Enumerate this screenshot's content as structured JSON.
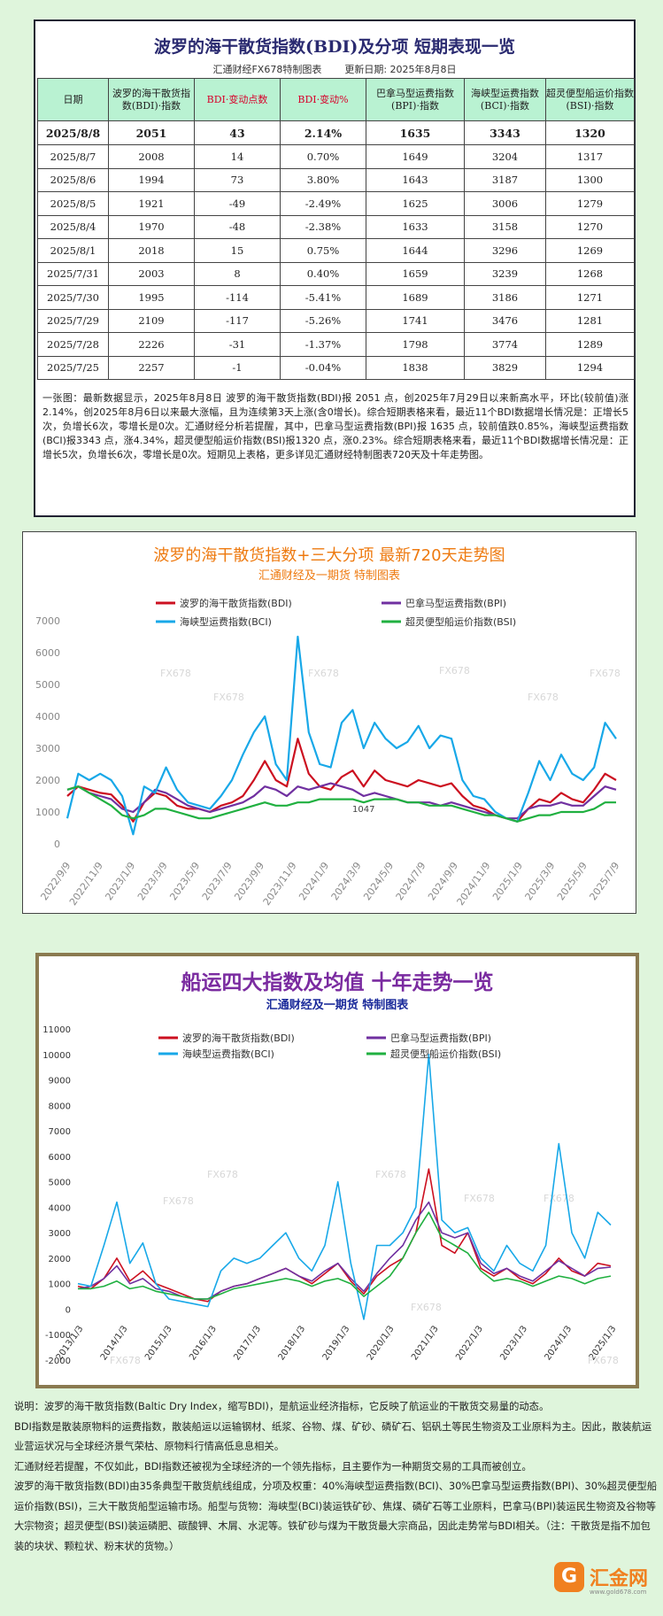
{
  "table": {
    "title": "波罗的海干散货指数(BDI)及分项  短期表现一览",
    "maker": "汇通财经FX678特制图表",
    "updated": "更新日期: 2025年8月8日",
    "headers": [
      "日期",
      "波罗的海干散货指数(BDI)·指数",
      "BDI·变动点数",
      "BDI·变动%",
      "巴拿马型运费指数(BPI)·指数",
      "海峡型运费指数(BCI)·指数",
      "超灵便型船运价指数(BSI)·指数"
    ],
    "rows": [
      [
        "2025/8/8",
        "2051",
        "43",
        "2.14%",
        "1635",
        "3343",
        "1320"
      ],
      [
        "2025/8/7",
        "2008",
        "14",
        "0.70%",
        "1649",
        "3204",
        "1317"
      ],
      [
        "2025/8/6",
        "1994",
        "73",
        "3.80%",
        "1643",
        "3187",
        "1300"
      ],
      [
        "2025/8/5",
        "1921",
        "-49",
        "-2.49%",
        "1625",
        "3006",
        "1279"
      ],
      [
        "2025/8/4",
        "1970",
        "-48",
        "-2.38%",
        "1633",
        "3158",
        "1270"
      ],
      [
        "2025/8/1",
        "2018",
        "15",
        "0.75%",
        "1644",
        "3296",
        "1269"
      ],
      [
        "2025/7/31",
        "2003",
        "8",
        "0.40%",
        "1659",
        "3239",
        "1268"
      ],
      [
        "2025/7/30",
        "1995",
        "-114",
        "-5.41%",
        "1689",
        "3186",
        "1271"
      ],
      [
        "2025/7/29",
        "2109",
        "-117",
        "-5.26%",
        "1741",
        "3476",
        "1281"
      ],
      [
        "2025/7/28",
        "2226",
        "-31",
        "-1.37%",
        "1798",
        "3774",
        "1289"
      ],
      [
        "2025/7/25",
        "2257",
        "-1",
        "-0.04%",
        "1838",
        "3829",
        "1294"
      ]
    ],
    "note": "一张图：最新数据显示，2025年8月8日 波罗的海干散货指数(BDI)报 2051 点，创2025年7月29日以来新高水平，环比(较前值)涨2.14%，创2025年8月6日以来最大涨幅，且为连续第3天上涨(含0增长)。综合短期表格来看，最近11个BDI数据增长情况是：正增长5次，负增长6次，零增长是0次。汇通财经分析若提醒，其中，巴拿马型运费指数(BPI)报 1635 点，较前值跌0.85%，海峡型运费指数(BCI)报3343 点，涨4.34%，超灵便型船运价指数(BSI)报1320 点，涨0.23%。综合短期表格来看，最近11个BDI数据增长情况是：正增长5次，负增长6次，零增长是0次。短期见上表格，更多详见汇通财经特制图表720天及十年走势图。"
  },
  "chart1": {
    "title": "波罗的海干散货指数+三大分项  最新720天走势图",
    "subtitle": "汇通财经及一期货 特制图表",
    "watermark": "FX678",
    "annotation": "1047",
    "colors": {
      "BDI": "#cc1020",
      "BPI": "#7030a0",
      "BCI": "#18a8e8",
      "BSI": "#20b040"
    }
  },
  "chart2": {
    "title": "船运四大指数及均值 十年走势一览",
    "subtitle": "汇通财经及一期货 特制图表",
    "watermark": "FX678"
  },
  "chart_data": [
    {
      "type": "line",
      "ylim": [
        0,
        7000
      ],
      "yticks": [
        0,
        1000,
        2000,
        3000,
        4000,
        5000,
        6000,
        7000
      ],
      "xticks": [
        "2022/9/9",
        "2022/11/9",
        "2023/1/9",
        "2023/3/9",
        "2023/5/9",
        "2023/7/9",
        "2023/9/9",
        "2023/11/9",
        "2024/1/9",
        "2024/3/9",
        "2024/5/9",
        "2024/7/9",
        "2024/9/9",
        "2024/11/9",
        "2025/1/9",
        "2025/3/9",
        "2025/5/9",
        "2025/7/9"
      ],
      "series": [
        {
          "name": "波罗的海干散货指数(BDI)",
          "key": "BDI",
          "values": [
            1500,
            1800,
            1700,
            1600,
            1550,
            1200,
            700,
            1300,
            1600,
            1500,
            1200,
            1100,
            1100,
            1000,
            1200,
            1300,
            1500,
            2000,
            2600,
            2000,
            1800,
            3300,
            2200,
            1800,
            1700,
            2100,
            2300,
            1800,
            2300,
            2000,
            1900,
            1800,
            2000,
            1900,
            1800,
            1900,
            1500,
            1200,
            1100,
            900,
            800,
            700,
            1100,
            1400,
            1300,
            1600,
            1400,
            1300,
            1700,
            2200,
            2000
          ]
        },
        {
          "name": "巴拿马型运费指数(BPI)",
          "key": "BPI",
          "values": [
            1700,
            1800,
            1600,
            1500,
            1400,
            1100,
            1000,
            1300,
            1700,
            1600,
            1400,
            1200,
            1100,
            1000,
            1100,
            1200,
            1300,
            1500,
            1800,
            1700,
            1500,
            1800,
            1700,
            1800,
            1900,
            1800,
            1700,
            1500,
            1600,
            1500,
            1400,
            1300,
            1300,
            1300,
            1200,
            1300,
            1200,
            1100,
            1000,
            900,
            800,
            800,
            1100,
            1200,
            1200,
            1300,
            1200,
            1200,
            1500,
            1800,
            1700
          ]
        },
        {
          "name": "海峡型运费指数(BCI)",
          "key": "BCI",
          "values": [
            800,
            2200,
            2000,
            2200,
            2000,
            1500,
            300,
            1800,
            1600,
            2400,
            1700,
            1300,
            1200,
            1100,
            1500,
            2000,
            2800,
            3500,
            4000,
            2500,
            2000,
            6500,
            3500,
            2500,
            2400,
            3800,
            4200,
            3000,
            3800,
            3300,
            3000,
            3200,
            3700,
            3000,
            3400,
            3300,
            2000,
            1500,
            1400,
            1000,
            800,
            700,
            1600,
            2600,
            2000,
            2800,
            2200,
            2000,
            2400,
            3800,
            3300
          ]
        },
        {
          "name": "超灵便型船运价指数(BSI)",
          "key": "BSI",
          "values": [
            1700,
            1800,
            1600,
            1400,
            1200,
            900,
            800,
            900,
            1100,
            1100,
            1000,
            900,
            800,
            800,
            900,
            1000,
            1100,
            1200,
            1300,
            1200,
            1200,
            1300,
            1300,
            1400,
            1400,
            1400,
            1400,
            1300,
            1400,
            1400,
            1400,
            1300,
            1300,
            1200,
            1200,
            1200,
            1100,
            1000,
            900,
            900,
            800,
            700,
            800,
            900,
            900,
            1000,
            1000,
            1000,
            1100,
            1300,
            1300
          ]
        }
      ]
    },
    {
      "type": "line",
      "ylim": [
        -2000,
        11000
      ],
      "yticks": [
        -2000,
        -1000,
        0,
        1000,
        2000,
        3000,
        4000,
        5000,
        6000,
        7000,
        8000,
        9000,
        10000,
        11000
      ],
      "xticks": [
        "2013/1/3",
        "2014/1/3",
        "2015/1/3",
        "2016/1/3",
        "2017/1/3",
        "2018/1/3",
        "2019/1/3",
        "2020/1/3",
        "2021/1/3",
        "2022/1/3",
        "2023/1/3",
        "2024/1/3",
        "2025/1/3"
      ],
      "series": [
        {
          "name": "波罗的海干散货指数(BDI)",
          "key": "BDI",
          "values": [
            900,
            800,
            1200,
            2000,
            1100,
            1500,
            1000,
            800,
            600,
            400,
            300,
            700,
            900,
            1000,
            1200,
            1400,
            1600,
            1300,
            1000,
            1400,
            1800,
            1100,
            600,
            1300,
            1700,
            2000,
            3000,
            5500,
            2500,
            2200,
            3000,
            1600,
            1300,
            1600,
            1200,
            1000,
            1400,
            2000,
            1500,
            1300,
            1800,
            1700
          ]
        },
        {
          "name": "巴拿马型运费指数(BPI)",
          "key": "BPI",
          "values": [
            800,
            900,
            1200,
            1700,
            1000,
            1200,
            800,
            700,
            500,
            400,
            400,
            700,
            900,
            1000,
            1200,
            1400,
            1600,
            1300,
            1100,
            1500,
            1800,
            1200,
            700,
            1400,
            2000,
            2500,
            3500,
            4200,
            3000,
            2800,
            3000,
            1800,
            1400,
            1600,
            1300,
            1100,
            1500,
            1900,
            1600,
            1300,
            1600,
            1650
          ]
        },
        {
          "name": "海峡型运费指数(BCI)",
          "key": "BCI",
          "values": [
            1000,
            900,
            2500,
            4200,
            1800,
            2600,
            1000,
            400,
            300,
            200,
            100,
            1500,
            2000,
            1800,
            2000,
            2500,
            3000,
            2000,
            1500,
            2500,
            5000,
            1800,
            -400,
            2500,
            2500,
            3000,
            4000,
            10000,
            3500,
            3000,
            3200,
            2000,
            1500,
            2500,
            1800,
            1500,
            2500,
            6500,
            3000,
            2000,
            3800,
            3300
          ]
        },
        {
          "name": "超灵便型船运价指数(BSI)",
          "key": "BSI",
          "values": [
            800,
            800,
            900,
            1100,
            800,
            900,
            700,
            600,
            500,
            400,
            400,
            600,
            800,
            900,
            1000,
            1100,
            1200,
            1100,
            900,
            1100,
            1200,
            1000,
            500,
            900,
            1300,
            2000,
            3000,
            3800,
            2800,
            2500,
            2200,
            1500,
            1100,
            1200,
            1100,
            900,
            1100,
            1300,
            1200,
            1000,
            1200,
            1300
          ]
        }
      ]
    }
  ],
  "explain": [
    "说明：波罗的海干散货指数(Baltic Dry Index，缩写BDI)，是航运业经济指标，它反映了航运业的干散货交易量的动态。",
    "BDI指数是散装原物料的运费指数，散装船运以运输钢材、纸浆、谷物、煤、矿砂、磷矿石、铝矾土等民生物资及工业原料为主。因此，散装航运业营运状况与全球经济景气荣枯、原物料行情高低息息相关。",
    "汇通财经若提醒，不仅如此，BDI指数还被视为全球经济的一个领先指标，且主要作为一种期货交易的工具而被创立。",
    "波罗的海干散货指数(BDI)由35条典型干散货航线组成，分项及权重：40%海峡型运费指数(BCI)、30%巴拿马型运费指数(BPI)、30%超灵便型船运价指数(BSI)，三大干散货船型运输市场。船型与货物：海峡型(BCI)装运铁矿砂、焦煤、磷矿石等工业原料，巴拿马(BPI)装运民生物资及谷物等大宗物资；超灵便型(BSI)装运磷肥、碳酸钾、木屑、水泥等。铁矿砂与煤为干散货最大宗商品，因此走势常与BDI相关。（注：干散货是指不加包装的块状、颗粒状、粉末状的货物。）"
  ],
  "logo": {
    "badge": "G",
    "name": "汇金网",
    "url": "www.gold678.com"
  }
}
